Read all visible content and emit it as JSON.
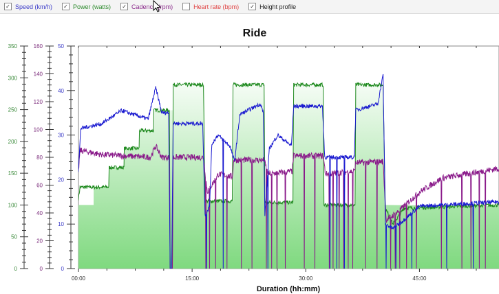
{
  "toolbar": {
    "checkboxes": [
      {
        "label": "Speed (km/h)",
        "checked": true,
        "color": "#3a3ac8"
      },
      {
        "label": "Power (watts)",
        "checked": true,
        "color": "#2e8b2e"
      },
      {
        "label": "Cadence (rpm)",
        "checked": true,
        "color": "#8b2a8b"
      },
      {
        "label": "Heart rate (bpm)",
        "checked": false,
        "color": "#e04040"
      },
      {
        "label": "Height profile",
        "checked": true,
        "color": "#222222"
      }
    ]
  },
  "chart_data": {
    "type": "line",
    "title": "Ride",
    "xlabel": "Duration (hh:mm)",
    "xlim": [
      0,
      55.5
    ],
    "x_ticks": [
      {
        "v": 0,
        "label": "00:00"
      },
      {
        "v": 15,
        "label": "15:00"
      },
      {
        "v": 30,
        "label": "30:00"
      },
      {
        "v": 45,
        "label": "45:00"
      }
    ],
    "grid": false,
    "axes": [
      {
        "name": "power",
        "color": "#3a8a3a",
        "range": [
          0,
          350
        ],
        "major": 50,
        "minor": 10,
        "labels": [
          "0",
          "50",
          "100",
          "150",
          "200",
          "250",
          "300",
          "350"
        ]
      },
      {
        "name": "cadence",
        "color": "#7a2a7a",
        "range": [
          0,
          160
        ],
        "major": 20,
        "minor": 4,
        "labels": [
          "0",
          "20",
          "40",
          "60",
          "80",
          "100",
          "120",
          "140",
          "160"
        ]
      },
      {
        "name": "speed",
        "color": "#3a3ac8",
        "range": [
          0,
          50
        ],
        "major": 10,
        "minor": 2,
        "labels": [
          "0",
          "10",
          "20",
          "30",
          "40",
          "50"
        ]
      }
    ],
    "series": [
      {
        "name": "Height profile",
        "axis": "power",
        "color": "#80d880",
        "kind": "area",
        "points": [
          [
            0,
            100
          ],
          [
            2,
            100
          ],
          [
            2.01,
            128
          ],
          [
            4,
            128
          ],
          [
            4.01,
            159
          ],
          [
            6,
            159
          ],
          [
            6.01,
            189
          ],
          [
            8,
            189
          ],
          [
            8.01,
            217
          ],
          [
            10,
            217
          ],
          [
            10.01,
            249
          ],
          [
            12.5,
            249
          ],
          [
            12.51,
            289
          ],
          [
            16.5,
            289
          ],
          [
            16.6,
            106
          ],
          [
            20.4,
            106
          ],
          [
            20.5,
            289
          ],
          [
            24.5,
            289
          ],
          [
            24.6,
            104
          ],
          [
            28.3,
            104
          ],
          [
            28.4,
            289
          ],
          [
            32.3,
            289
          ],
          [
            32.4,
            100
          ],
          [
            36.5,
            100
          ],
          [
            36.6,
            289
          ],
          [
            40.2,
            289
          ],
          [
            40.4,
            100
          ],
          [
            55.5,
            98
          ]
        ]
      },
      {
        "name": "Power (watts)",
        "axis": "power",
        "color": "#1f8a1f",
        "noise": 3,
        "points": [
          [
            0,
            110
          ],
          [
            0.2,
            128
          ],
          [
            4,
            128
          ],
          [
            4.01,
            159
          ],
          [
            6,
            159
          ],
          [
            6.01,
            189
          ],
          [
            8,
            189
          ],
          [
            8.01,
            217
          ],
          [
            9.9,
            217
          ],
          [
            9.95,
            249
          ],
          [
            12,
            249
          ],
          [
            12.1,
            0
          ],
          [
            12.4,
            0
          ],
          [
            12.5,
            289
          ],
          [
            16.5,
            289
          ],
          [
            16.7,
            106
          ],
          [
            20.3,
            106
          ],
          [
            20.4,
            289
          ],
          [
            24.5,
            289
          ],
          [
            24.6,
            104
          ],
          [
            28.3,
            104
          ],
          [
            28.4,
            289
          ],
          [
            32.3,
            289
          ],
          [
            32.4,
            100
          ],
          [
            36.5,
            100
          ],
          [
            36.6,
            289
          ],
          [
            40.2,
            289
          ],
          [
            40.5,
            95
          ],
          [
            41.5,
            70
          ],
          [
            43,
            95
          ],
          [
            55.5,
            100
          ]
        ],
        "drops": []
      },
      {
        "name": "Cadence (rpm)",
        "axis": "cadence",
        "color": "#8a1a8a",
        "noise": 2.2,
        "points": [
          [
            0,
            70
          ],
          [
            0.2,
            85
          ],
          [
            3,
            82
          ],
          [
            9.5,
            80
          ],
          [
            10.2,
            88
          ],
          [
            11,
            80
          ],
          [
            12,
            80
          ],
          [
            12.1,
            0
          ],
          [
            12.4,
            0
          ],
          [
            12.5,
            80
          ],
          [
            16.5,
            80
          ],
          [
            17,
            55
          ],
          [
            18.5,
            68
          ],
          [
            20.3,
            66
          ],
          [
            20.5,
            78
          ],
          [
            24.5,
            78
          ],
          [
            25,
            68
          ],
          [
            28.2,
            70
          ],
          [
            28.4,
            81
          ],
          [
            32.3,
            81
          ],
          [
            32.6,
            68
          ],
          [
            36.4,
            70
          ],
          [
            36.6,
            76
          ],
          [
            40.2,
            77
          ],
          [
            40.6,
            35
          ],
          [
            42,
            40
          ],
          [
            45,
            55
          ],
          [
            48,
            65
          ],
          [
            55.5,
            72
          ]
        ],
        "drops": [
          16.8,
          17.3,
          18.1,
          19.6,
          21.5,
          22.9,
          24.8,
          25.5,
          26.2,
          27.3,
          29.8,
          31.2,
          33.1,
          33.6,
          34.4,
          35.0,
          35.6,
          36.2,
          37.9,
          39.4,
          41.2,
          41.8,
          42.4,
          43.3,
          44.6,
          47.9,
          50.6,
          51.8,
          52.9,
          53.7
        ]
      },
      {
        "name": "Speed (km/h)",
        "axis": "speed",
        "color": "#1a1ad0",
        "noise": 0.45,
        "points": [
          [
            0,
            22
          ],
          [
            0.3,
            31.5
          ],
          [
            3,
            32.5
          ],
          [
            5.7,
            35.5
          ],
          [
            7.5,
            34.5
          ],
          [
            9.2,
            33.6
          ],
          [
            10.2,
            40.6
          ],
          [
            11,
            35
          ],
          [
            11.9,
            35
          ],
          [
            12.1,
            0
          ],
          [
            12.3,
            0
          ],
          [
            12.5,
            32.6
          ],
          [
            16.4,
            32.6
          ],
          [
            16.7,
            12
          ],
          [
            17.3,
            14
          ],
          [
            17.6,
            28
          ],
          [
            18.4,
            30
          ],
          [
            20,
            27.5
          ],
          [
            20.6,
            24
          ],
          [
            21.3,
            34.6
          ],
          [
            24,
            37
          ],
          [
            24.4,
            35
          ],
          [
            24.6,
            12
          ],
          [
            25.2,
            27
          ],
          [
            26.3,
            30
          ],
          [
            28.1,
            27.6
          ],
          [
            28.4,
            36.5
          ],
          [
            32.2,
            36.5
          ],
          [
            32.5,
            25
          ],
          [
            36.4,
            25
          ],
          [
            36.6,
            35.6
          ],
          [
            39.5,
            37
          ],
          [
            40.2,
            43.5
          ],
          [
            40.5,
            10
          ],
          [
            41.5,
            9
          ],
          [
            43,
            11
          ],
          [
            45,
            14
          ],
          [
            55.5,
            15
          ]
        ],
        "drops": [
          16.9,
          19.1,
          25.0,
          33.2,
          34.1,
          35.1,
          40.6,
          41.9,
          44.0,
          48.6,
          52.1
        ]
      }
    ]
  }
}
